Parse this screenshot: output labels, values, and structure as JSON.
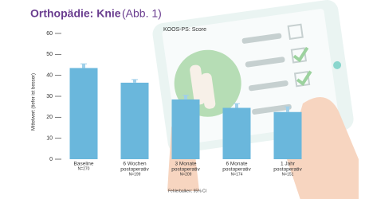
{
  "chart_data": {
    "type": "bar",
    "title": "Orthopädie: Knie",
    "title_note": "(Abb. 1)",
    "subtitle": "KOOS-PS: Score",
    "y_label": "Mittelwert (tiefer ist besser)",
    "footnote": "Fehlerbalken: 95% CI",
    "categories": [
      [
        "Baseline"
      ],
      [
        "6 Wochen",
        "postoperativ"
      ],
      [
        "3 Monate",
        "postoperativ"
      ],
      [
        "6 Monate",
        "postoperativ"
      ],
      [
        "1 Jahr",
        "postoperativ"
      ]
    ],
    "n_labels": [
      "N=270",
      "N=199",
      "N=209",
      "N=174",
      "N=151"
    ],
    "values": [
      43.5,
      36.5,
      28.5,
      24.5,
      22.5
    ],
    "errors": [
      2,
      1.5,
      2,
      2,
      2.5
    ],
    "color": "#6ab7dc",
    "error_color": "#9fd0ea",
    "ylim": [
      0,
      60
    ],
    "yticks": [
      0,
      10,
      20,
      30,
      40,
      50,
      60
    ]
  }
}
